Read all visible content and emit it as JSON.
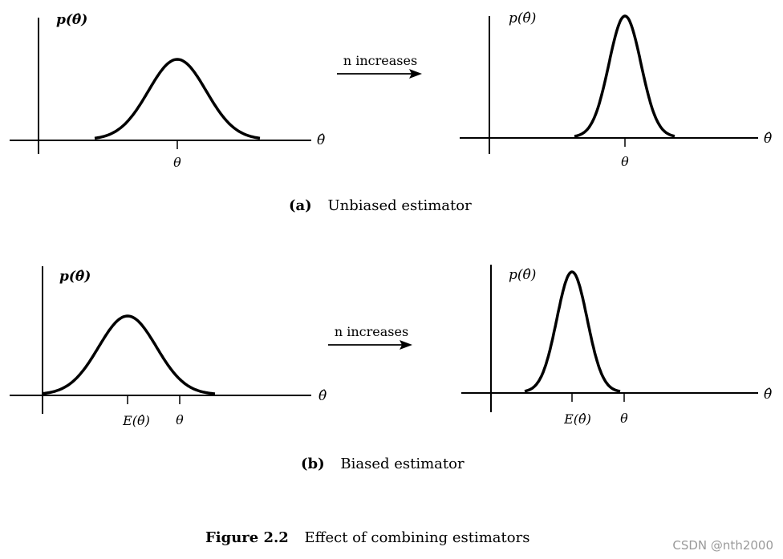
{
  "panel_a": {
    "left": {
      "y_axis_label": "p(θ̂)",
      "x_axis_label": "θ̂",
      "tick_label": "θ"
    },
    "arrow_label": "n increases",
    "right": {
      "y_axis_label": "p(θ̂)",
      "x_axis_label": "θ̂",
      "tick_label": "θ"
    },
    "caption_tag": "(a)",
    "caption_text": "Unbiased estimator"
  },
  "panel_b": {
    "left": {
      "y_axis_label": "p(θ̂)",
      "x_axis_label": "θ̂",
      "tick_label_1": "E(θ̂)",
      "tick_label_2": "θ"
    },
    "arrow_label": "n increases",
    "right": {
      "y_axis_label": "p(θ̂)",
      "x_axis_label": "θ̂",
      "tick_label_1": "E(θ̂)",
      "tick_label_2": "θ"
    },
    "caption_tag": "(b)",
    "caption_text": "Biased estimator"
  },
  "figure_caption": {
    "number": "Figure 2.2",
    "text": "Effect of combining estimators"
  },
  "watermark": "CSDN @nth2000"
}
